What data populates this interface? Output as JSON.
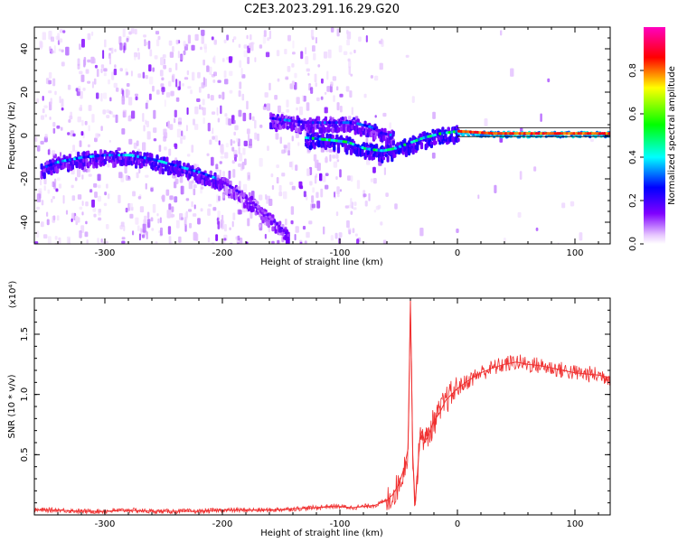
{
  "title": "C2E3.2023.291.16.29.G20",
  "chart_data": [
    {
      "type": "heatmap",
      "xlabel": "Height of straight line (km)",
      "ylabel": "Frequency (Hz)",
      "xlim": [
        -360,
        130
      ],
      "ylim": [
        -50,
        50
      ],
      "x_ticks": [
        -300,
        -200,
        -100,
        0,
        100
      ],
      "y_ticks": [
        -40,
        -20,
        0,
        20,
        40
      ],
      "grid": false,
      "colorbar": {
        "label": "Normalized spectral amplitude",
        "range": [
          0.0,
          1.0
        ],
        "ticks": [
          0.0,
          0.2,
          0.4,
          0.6,
          0.8
        ],
        "colormap": [
          "#ffffff",
          "#e8c8ff",
          "#8000ff",
          "#0000ff",
          "#00ffff",
          "#00ff00",
          "#ffff00",
          "#ff0000",
          "#ff00c0"
        ]
      },
      "ridges": [
        {
          "points": [
            [
              -355,
              -15
            ],
            [
              -340,
              -12
            ],
            [
              -320,
              -10
            ],
            [
              -300,
              -9
            ],
            [
              -280,
              -9
            ],
            [
              -260,
              -11
            ],
            [
              -240,
              -14
            ],
            [
              -220,
              -17
            ],
            [
              -205,
              -20
            ]
          ],
          "amplitude": 0.3
        },
        {
          "points": [
            [
              -205,
              -20
            ],
            [
              -190,
              -25
            ],
            [
              -175,
              -31
            ],
            [
              -160,
              -38
            ],
            [
              -145,
              -46
            ]
          ],
          "amplitude": 0.15
        },
        {
          "points": [
            [
              -160,
              8
            ],
            [
              -130,
              6
            ],
            [
              -110,
              6
            ],
            [
              -90,
              6
            ],
            [
              -75,
              4
            ],
            [
              -65,
              1
            ],
            [
              -55,
              0
            ]
          ],
          "amplitude": 0.25
        },
        {
          "points": [
            [
              -130,
              -1
            ],
            [
              -110,
              -2
            ],
            [
              -95,
              -3
            ],
            [
              -80,
              -6
            ],
            [
              -65,
              -7
            ],
            [
              -55,
              -6
            ],
            [
              -45,
              -4
            ],
            [
              -30,
              -1
            ],
            [
              -15,
              1
            ],
            [
              0,
              2
            ]
          ],
          "amplitude": 0.4
        },
        {
          "points": [
            [
              0,
              2
            ],
            [
              30,
              1
            ],
            [
              60,
              1
            ],
            [
              90,
              1
            ],
            [
              130,
              1
            ]
          ],
          "amplitude": 0.85
        }
      ]
    },
    {
      "type": "line",
      "xlabel": "Height of straight line (km)",
      "ylabel": "SNR (10 * v/v)",
      "y_multiplier": "(x10⁴)",
      "xlim": [
        -360,
        130
      ],
      "ylim": [
        0,
        1.8
      ],
      "x_ticks": [
        -300,
        -200,
        -100,
        0,
        100
      ],
      "y_ticks": [
        0.5,
        1.0,
        1.5
      ],
      "grid": false,
      "color": "#f03030",
      "series": [
        {
          "x": [
            -360,
            -340,
            -320,
            -300,
            -280,
            -260,
            -240,
            -220,
            -200,
            -180,
            -160,
            -140,
            -120,
            -110,
            -100,
            -90,
            -80,
            -70,
            -60,
            -55,
            -50,
            -45,
            -42,
            -40,
            -38,
            -36,
            -34,
            -32,
            -30,
            -28,
            -25,
            -20,
            -15,
            -10,
            0,
            10,
            20,
            30,
            40,
            50,
            60,
            70,
            80,
            90,
            100,
            110,
            120,
            130
          ],
          "y": [
            0.04,
            0.04,
            0.03,
            0.03,
            0.04,
            0.03,
            0.03,
            0.03,
            0.04,
            0.04,
            0.04,
            0.05,
            0.06,
            0.07,
            0.07,
            0.06,
            0.07,
            0.08,
            0.12,
            0.17,
            0.25,
            0.4,
            0.55,
            1.78,
            0.5,
            0.08,
            0.35,
            0.62,
            0.7,
            0.6,
            0.65,
            0.78,
            0.85,
            0.95,
            1.05,
            1.12,
            1.18,
            1.22,
            1.25,
            1.27,
            1.25,
            1.24,
            1.22,
            1.2,
            1.18,
            1.17,
            1.16,
            1.14
          ]
        }
      ]
    }
  ]
}
